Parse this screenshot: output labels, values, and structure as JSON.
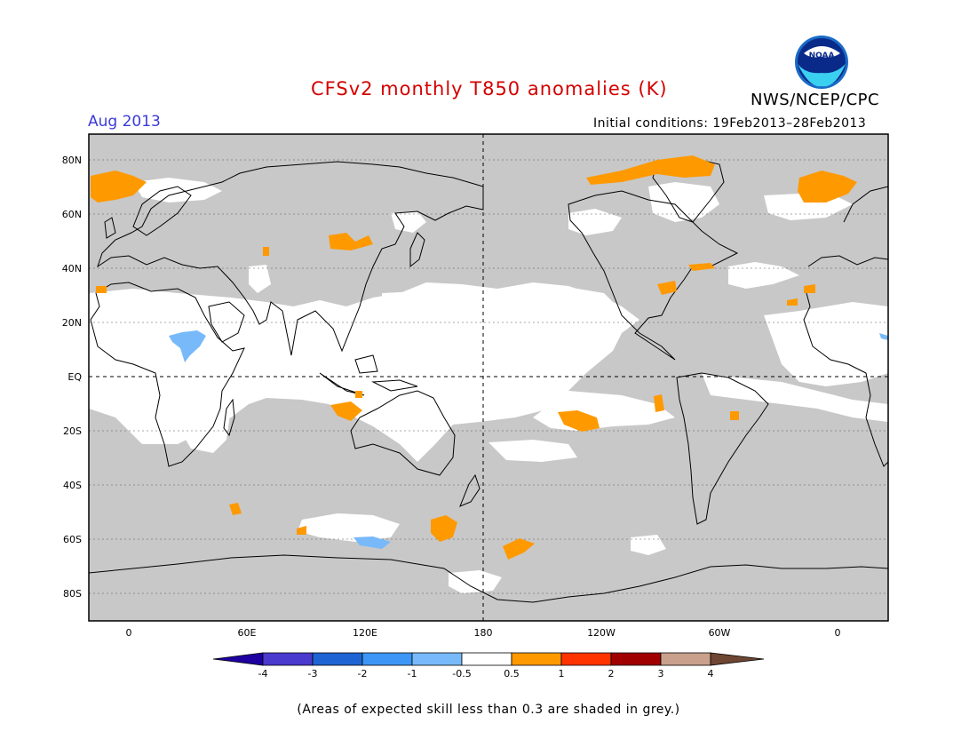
{
  "header": {
    "title": "CFSv2 monthly T850 anomalies (K)",
    "target_month": "Aug 2013",
    "initial_conditions": "Initial conditions: 19Feb2013–28Feb2013",
    "organization": "NWS/NCEP/CPC",
    "logo_text": "NOAA"
  },
  "map": {
    "latitude_labels": [
      "80N",
      "60N",
      "40N",
      "20N",
      "EQ",
      "20S",
      "40S",
      "60S",
      "80S"
    ],
    "longitude_labels": [
      "0",
      "60E",
      "120E",
      "180",
      "120W",
      "60W",
      "0"
    ],
    "background_color": "#c8c8c8",
    "high_skill_color": "#ffffff"
  },
  "legend": {
    "tick_labels": [
      "-4",
      "-3",
      "-2",
      "-1",
      "-0.5",
      "0.5",
      "1",
      "2",
      "3",
      "4"
    ],
    "colors": [
      "#1e00a0",
      "#4a3acd",
      "#1e64d2",
      "#3c96f5",
      "#78b9fa",
      "#ffffff",
      "#ff9900",
      "#ff3300",
      "#a00000",
      "#c8a08c",
      "#6e4632"
    ]
  },
  "footnote": "(Areas of expected skill less than 0.3 are shaded in grey.)"
}
